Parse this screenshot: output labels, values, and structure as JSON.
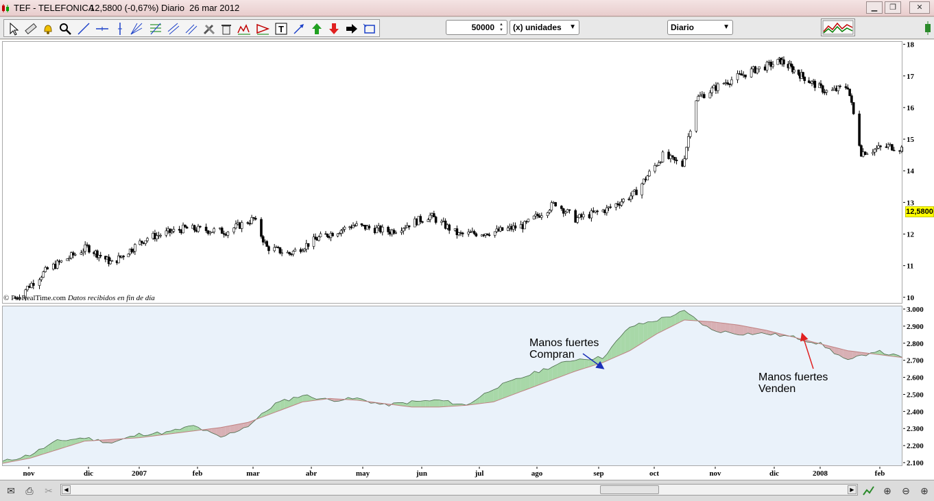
{
  "titlebar": {
    "ticker": "TEF - TELEFONICA",
    "price_change": "12,5800 (-0,67%)",
    "period_date": "Diario  26 mar 2012"
  },
  "toolbar": {
    "icons": [
      "cursor-icon",
      "ruler-icon",
      "alarm-bell-icon",
      "zoom-icon",
      "trendline-icon",
      "horizontal-line-icon",
      "vertical-line-icon",
      "fan-icon",
      "fibonacci-icon",
      "channel-icon",
      "parallel-lines-icon",
      "tools-icon",
      "trash-icon",
      "pattern-icon",
      "triangle-icon",
      "text-icon",
      "arrow-diagonal-icon",
      "arrow-up-green-icon",
      "arrow-down-red-icon",
      "arrow-right-icon",
      "rectangle-icon"
    ],
    "quantity_value": "50000",
    "quantity_unit": "(x) unidades",
    "period": "Diario"
  },
  "chart": {
    "copyright": "© ProRealTime.com",
    "copyright_note": "Datos recibidos en fin de día",
    "last_price_label": "12,5800",
    "price_axis_ticks": [
      "18",
      "17",
      "16",
      "15",
      "14",
      "13",
      "12",
      "11",
      "10"
    ],
    "volume_axis_ticks": [
      "3.000",
      "2.900",
      "2.800",
      "2.700",
      "2.600",
      "2.500",
      "2.400",
      "2.300",
      "2.200",
      "2.100"
    ],
    "time_axis_ticks": [
      "nov",
      "dic",
      "2007",
      "feb",
      "mar",
      "abr",
      "may",
      "jun",
      "jul",
      "ago",
      "sep",
      "oct",
      "nov",
      "dic",
      "2008",
      "feb"
    ],
    "annotation_buy": [
      "Manos fuertes",
      "Compran"
    ],
    "annotation_sell": [
      "Manos fuertes",
      "Venden"
    ]
  },
  "chart_data": [
    {
      "type": "candlestick",
      "title": "TEF - TELEFONICA",
      "ylim": [
        9.8,
        18.1
      ],
      "x_range": [
        "2006-10-25",
        "2008-02-25"
      ],
      "close_trend": [
        {
          "x": "2006-10-25",
          "y": 10.0
        },
        {
          "x": "2006-11-10",
          "y": 10.9
        },
        {
          "x": "2006-11-30",
          "y": 11.6
        },
        {
          "x": "2006-12-15",
          "y": 11.1
        },
        {
          "x": "2007-01-05",
          "y": 11.9
        },
        {
          "x": "2007-01-25",
          "y": 12.2
        },
        {
          "x": "2007-02-15",
          "y": 12.1
        },
        {
          "x": "2007-03-01",
          "y": 12.5
        },
        {
          "x": "2007-03-08",
          "y": 11.6
        },
        {
          "x": "2007-03-20",
          "y": 11.4
        },
        {
          "x": "2007-04-05",
          "y": 11.9
        },
        {
          "x": "2007-04-25",
          "y": 12.3
        },
        {
          "x": "2007-05-15",
          "y": 12.1
        },
        {
          "x": "2007-06-05",
          "y": 12.6
        },
        {
          "x": "2007-06-20",
          "y": 12.0
        },
        {
          "x": "2007-07-10",
          "y": 12.1
        },
        {
          "x": "2007-07-25",
          "y": 12.3
        },
        {
          "x": "2007-08-10",
          "y": 13.0
        },
        {
          "x": "2007-08-20",
          "y": 12.5
        },
        {
          "x": "2007-09-05",
          "y": 12.8
        },
        {
          "x": "2007-09-20",
          "y": 13.3
        },
        {
          "x": "2007-10-05",
          "y": 14.5
        },
        {
          "x": "2007-10-15",
          "y": 14.2
        },
        {
          "x": "2007-10-22",
          "y": 16.3
        },
        {
          "x": "2007-11-05",
          "y": 16.8
        },
        {
          "x": "2007-11-20",
          "y": 17.2
        },
        {
          "x": "2007-12-05",
          "y": 17.5
        },
        {
          "x": "2007-12-20",
          "y": 17.0
        },
        {
          "x": "2008-01-05",
          "y": 16.5
        },
        {
          "x": "2008-01-15",
          "y": 16.7
        },
        {
          "x": "2008-01-22",
          "y": 14.6
        },
        {
          "x": "2008-02-05",
          "y": 14.8
        },
        {
          "x": "2008-02-25",
          "y": 14.6
        }
      ]
    },
    {
      "type": "area",
      "ylim": [
        2.08,
        3.02
      ],
      "series": [
        {
          "values": [
            2.11,
            2.15,
            2.23,
            2.25,
            2.22,
            2.27,
            2.28,
            2.32,
            2.25,
            2.32,
            2.45,
            2.5,
            2.47,
            2.48,
            2.44,
            2.46,
            2.47,
            2.44,
            2.54,
            2.6,
            2.66,
            2.71,
            2.72,
            2.9,
            2.94,
            2.99,
            2.88,
            2.86,
            2.86,
            2.84,
            2.8,
            2.7,
            2.76,
            2.72
          ]
        },
        {
          "values": [
            2.1,
            2.13,
            2.18,
            2.23,
            2.24,
            2.25,
            2.27,
            2.29,
            2.31,
            2.34,
            2.4,
            2.46,
            2.48,
            2.47,
            2.45,
            2.43,
            2.43,
            2.44,
            2.46,
            2.52,
            2.58,
            2.64,
            2.69,
            2.76,
            2.86,
            2.94,
            2.93,
            2.91,
            2.88,
            2.84,
            2.8,
            2.76,
            2.74,
            2.72
          ]
        }
      ]
    }
  ],
  "statusbar": {
    "icons": [
      "email-icon",
      "print-icon",
      "scissors-icon",
      "scroll-left-icon",
      "scroll-right-icon",
      "indicator-icon",
      "zoom-fit-icon",
      "zoom-out-icon",
      "zoom-in-icon"
    ]
  }
}
